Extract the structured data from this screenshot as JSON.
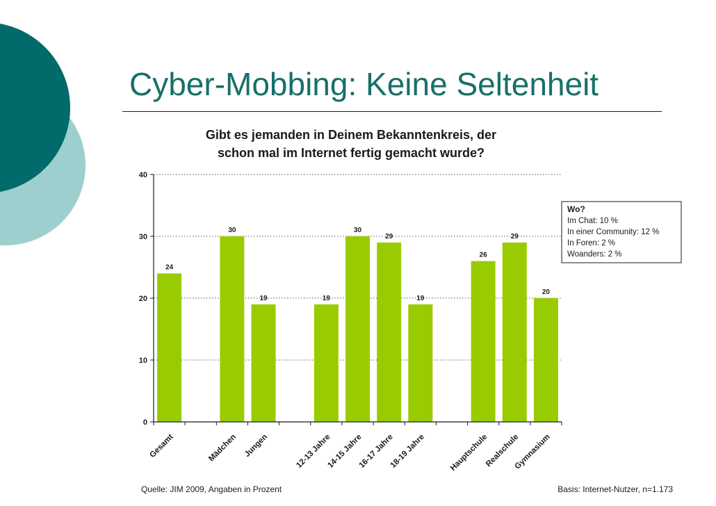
{
  "slide": {
    "title": "Cyber-Mobbing: Keine Seltenheit",
    "accent_dark": "#006b6a",
    "accent_light": "#9ecfcf"
  },
  "chart_data": {
    "type": "bar",
    "title_lines": [
      "Gibt es jemanden in Deinem Bekanntenkreis, der",
      "schon mal im Internet fertig gemacht wurde?"
    ],
    "categories": [
      "Gesamt",
      "Mädchen",
      "Jungen",
      "12-13 Jahre",
      "14-15 Jahre",
      "16-17 Jahre",
      "18-19 Jahre",
      "Hauptschule",
      "Realschule",
      "Gymnasium"
    ],
    "groups": [
      [
        0
      ],
      [
        1,
        2
      ],
      [
        3,
        4,
        5,
        6
      ],
      [
        7,
        8,
        9
      ]
    ],
    "values": [
      24,
      30,
      19,
      19,
      30,
      29,
      19,
      26,
      29,
      20
    ],
    "ylim": [
      0,
      40
    ],
    "yticks": [
      0,
      10,
      20,
      30,
      40
    ],
    "grid": "dotted horizontal",
    "bar_color": "#99cc00",
    "legend_box": {
      "title": "Wo?",
      "items": [
        "Im Chat: 10 %",
        "In einer Community: 12 %",
        "In Foren: 2 %",
        "Woanders: 2 %"
      ],
      "position": "top-right"
    },
    "source": "Quelle: JIM 2009, Angaben in Prozent",
    "basis": "Basis: Internet-Nutzer, n=1.173"
  }
}
